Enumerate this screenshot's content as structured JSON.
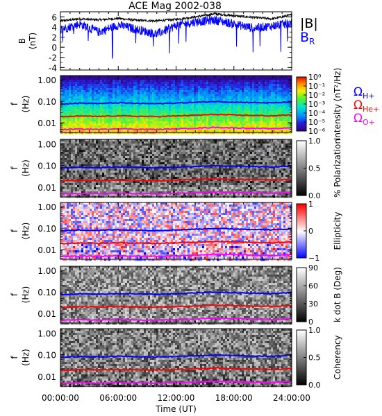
{
  "chart_data": {
    "title": "ACE Mag 2002-038",
    "x_axis": {
      "label": "Time (UT)",
      "ticks": [
        "00:00:00",
        "06:00:00",
        "12:00:00",
        "18:00:00",
        "24:00:00"
      ],
      "range_hours": [
        0,
        24
      ]
    },
    "panels": [
      {
        "id": "field",
        "type": "line",
        "ylabel": "B (nT)",
        "ylim": [
          -4.5,
          7
        ],
        "yticks": [
          "6",
          "4",
          "2",
          "0",
          "-2",
          "-4"
        ],
        "series": [
          {
            "name": "|B|",
            "color": "#000000",
            "x": [
              0,
              2,
              4,
              6,
              8,
              10,
              12,
              14,
              16,
              18,
              20,
              22,
              24
            ],
            "y": [
              5.2,
              5.6,
              5.4,
              5.7,
              5.3,
              5.2,
              5.5,
              6.0,
              6.6,
              6.2,
              5.9,
              5.6,
              6.4
            ]
          },
          {
            "name": "B_R",
            "color": "#0000ff",
            "x": [
              0,
              2,
              4,
              6,
              8,
              10,
              12,
              14,
              16,
              18,
              20,
              22,
              24
            ],
            "y": [
              3.5,
              4.6,
              3.0,
              4.4,
              3.5,
              2.6,
              4.3,
              5.0,
              5.4,
              4.6,
              3.8,
              4.2,
              4.8
            ]
          }
        ]
      },
      {
        "id": "intensity",
        "type": "heatmap",
        "ylabel": "f (Hz)",
        "yscale": "log",
        "yticks": [
          "1.00",
          "0.10",
          "0.01"
        ],
        "colorbar": {
          "label": "Intensity (nT²/Hz)",
          "ticks": [
            "10⁰",
            "10⁻¹",
            "10⁻²",
            "10⁻³",
            "10⁻⁴",
            "10⁻⁵",
            "10⁻⁶"
          ],
          "scale": "rainbow"
        }
      },
      {
        "id": "polarization",
        "type": "heatmap",
        "ylabel": "f (Hz)",
        "yscale": "log",
        "yticks": [
          "1.00",
          "0.10",
          "0.01"
        ],
        "colorbar": {
          "label": "% Polarization",
          "ticks": [
            "1.0",
            "0.5",
            "0.0"
          ],
          "scale": "gray"
        }
      },
      {
        "id": "ellipticity",
        "type": "heatmap",
        "ylabel": "f (Hz)",
        "yscale": "log",
        "yticks": [
          "1.00",
          "0.10",
          "0.01"
        ],
        "colorbar": {
          "label": "Ellipticity",
          "ticks": [
            "1",
            "0",
            "−1"
          ],
          "scale": "bwr"
        }
      },
      {
        "id": "kdotb",
        "type": "heatmap",
        "ylabel": "f (Hz)",
        "yscale": "log",
        "yticks": [
          "1.00",
          "0.10",
          "0.01"
        ],
        "colorbar": {
          "label": "k dot B (Deg)",
          "ticks": [
            "90",
            "60",
            "30",
            "0"
          ],
          "scale": "gray"
        }
      },
      {
        "id": "coherency",
        "type": "heatmap",
        "ylabel": "f (Hz)",
        "yscale": "log",
        "yticks": [
          "1.00",
          "0.10",
          "0.01"
        ],
        "colorbar": {
          "label": "Coherency",
          "ticks": [
            "1.0",
            "0.5",
            "0.0"
          ],
          "scale": "gray"
        }
      }
    ],
    "gyrofrequency_lines": {
      "x_hours": [
        0,
        2,
        4,
        6,
        8,
        10,
        12,
        14,
        16,
        18,
        20,
        22,
        24
      ],
      "series": [
        {
          "name": "Ω_H+",
          "color": "#0000ff",
          "freq_hz": [
            0.076,
            0.082,
            0.079,
            0.085,
            0.08,
            0.078,
            0.083,
            0.09,
            0.098,
            0.092,
            0.088,
            0.084,
            0.094
          ]
        },
        {
          "name": "Ω_He+",
          "color": "#ff0000",
          "freq_hz": [
            0.019,
            0.0205,
            0.0198,
            0.0212,
            0.02,
            0.0195,
            0.0208,
            0.0225,
            0.0245,
            0.023,
            0.022,
            0.021,
            0.0235
          ]
        },
        {
          "name": "Ω_O+",
          "color": "#ff00ff",
          "freq_hz": [
            0.0048,
            0.0051,
            0.0049,
            0.0053,
            0.005,
            0.0049,
            0.0052,
            0.0056,
            0.0061,
            0.0058,
            0.0055,
            0.0053,
            0.0059
          ]
        }
      ]
    },
    "legend": {
      "field": [
        "|B|",
        "B_R"
      ],
      "gyro": [
        "Ω_H+",
        "Ω_He+",
        "Ω_O+"
      ]
    }
  }
}
